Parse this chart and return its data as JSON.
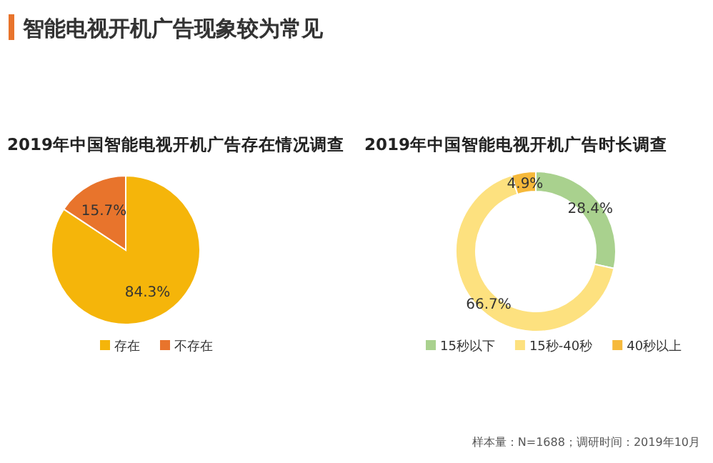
{
  "chart_data": [
    {
      "type": "pie",
      "title": "2019年中国智能电视开机广告存在情况调查",
      "categories": [
        "存在",
        "不存在"
      ],
      "values": [
        84.3,
        15.7
      ],
      "colors": [
        "#f5b50a",
        "#e8742c"
      ],
      "value_labels": [
        "84.3%",
        "15.7%"
      ],
      "legend": "bottom",
      "annotations": [
        "智能电视开机广告现象较为常见"
      ]
    },
    {
      "type": "donut",
      "title": "2019年中国智能电视开机广告时长调查",
      "categories": [
        "15秒以下",
        "15秒-40秒",
        "40秒以上"
      ],
      "values": [
        28.4,
        66.7,
        4.9
      ],
      "colors": [
        "#a9d18e",
        "#fde17f",
        "#f6b93b"
      ],
      "value_labels": [
        "28.4%",
        "66.7%",
        "4.9%"
      ],
      "legend": "bottom",
      "annotations": [
        "样本量：N=1688；调研时间：2019年10月"
      ]
    }
  ]
}
